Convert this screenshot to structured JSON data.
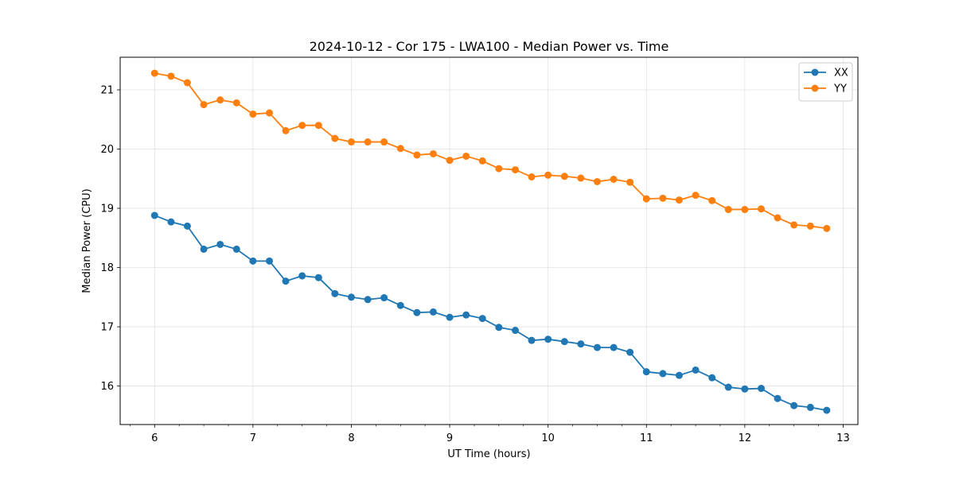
{
  "chart_data": {
    "type": "line",
    "title": "2024-10-12 - Cor 175 - LWA100 - Median Power vs. Time",
    "xlabel": "UT Time (hours)",
    "ylabel": "Median Power (CPU)",
    "xlim": [
      5.65,
      13.15
    ],
    "ylim": [
      15.35,
      21.55
    ],
    "xticks": [
      6,
      7,
      8,
      9,
      10,
      11,
      12,
      13
    ],
    "yticks": [
      16,
      17,
      18,
      19,
      20,
      21
    ],
    "grid": true,
    "legend_position": "top-right",
    "x": [
      6.0,
      6.167,
      6.333,
      6.5,
      6.667,
      6.833,
      7.0,
      7.167,
      7.333,
      7.5,
      7.667,
      7.833,
      8.0,
      8.167,
      8.333,
      8.5,
      8.667,
      8.833,
      9.0,
      9.167,
      9.333,
      9.5,
      9.667,
      9.833,
      10.0,
      10.167,
      10.333,
      10.5,
      10.667,
      10.833,
      11.0,
      11.167,
      11.333,
      11.5,
      11.667,
      11.833,
      12.0,
      12.167,
      12.333,
      12.5,
      12.667,
      12.833
    ],
    "series": [
      {
        "name": "XX",
        "color": "#1f77b4",
        "values": [
          18.88,
          18.77,
          18.7,
          18.31,
          18.39,
          18.31,
          18.11,
          18.11,
          17.77,
          17.86,
          17.83,
          17.56,
          17.5,
          17.46,
          17.49,
          17.36,
          17.24,
          17.25,
          17.16,
          17.2,
          17.14,
          16.99,
          16.94,
          16.77,
          16.79,
          16.75,
          16.71,
          16.65,
          16.65,
          16.57,
          16.24,
          16.21,
          16.18,
          16.27,
          16.14,
          15.98,
          15.95,
          15.96,
          15.79,
          15.67,
          15.64,
          15.59
        ]
      },
      {
        "name": "YY",
        "color": "#ff7f0e",
        "values": [
          21.28,
          21.23,
          21.12,
          20.75,
          20.83,
          20.78,
          20.59,
          20.61,
          20.31,
          20.4,
          20.4,
          20.18,
          20.12,
          20.12,
          20.12,
          20.01,
          19.9,
          19.92,
          19.81,
          19.88,
          19.8,
          19.67,
          19.65,
          19.53,
          19.56,
          19.54,
          19.51,
          19.45,
          19.49,
          19.44,
          19.16,
          19.17,
          19.14,
          19.22,
          19.13,
          18.98,
          18.98,
          18.99,
          18.84,
          18.72,
          18.7,
          18.66
        ]
      }
    ]
  }
}
